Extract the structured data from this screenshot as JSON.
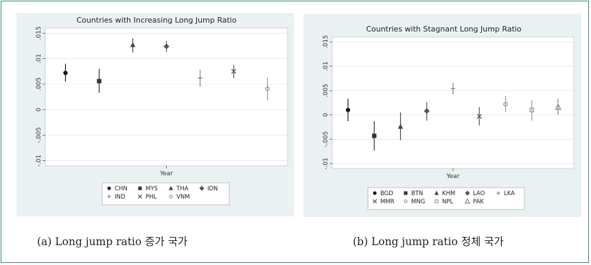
{
  "captions": {
    "a": "(a) Long jump ratio 증가 국가",
    "b": "(b) Long jump ratio 정체 국가"
  },
  "chart_data": [
    {
      "type": "scatter",
      "subtype": "point-with-confidence-interval",
      "title": "Countries with Increasing Long Jump Ratio",
      "xlabel": "Year",
      "ylabel": "",
      "ylim": [
        -0.011,
        0.016
      ],
      "yticks": [
        ".015",
        ".01",
        ".005",
        "0",
        "-.005",
        "-.01"
      ],
      "ytick_values": [
        0.015,
        0.01,
        0.005,
        0,
        -0.005,
        -0.01
      ],
      "grid": true,
      "legend_position": "bottom",
      "legend_rows": [
        [
          "CHN",
          "MYS",
          "THA",
          "IDN"
        ],
        [
          "IND",
          "PHL",
          "VNM"
        ]
      ],
      "series": [
        {
          "name": "CHN",
          "marker": "circle",
          "color": "#1a1a1a",
          "value": 0.0072,
          "ci": [
            0.0055,
            0.009
          ]
        },
        {
          "name": "MYS",
          "marker": "square",
          "color": "#333333",
          "value": 0.0056,
          "ci": [
            0.0033,
            0.008
          ]
        },
        {
          "name": "THA",
          "marker": "triangle",
          "color": "#444444",
          "value": 0.0127,
          "ci": [
            0.0112,
            0.014
          ]
        },
        {
          "name": "IDN",
          "marker": "diamond",
          "color": "#555555",
          "value": 0.0124,
          "ci": [
            0.0113,
            0.0135
          ]
        },
        {
          "name": "IND",
          "marker": "plus",
          "color": "#888888",
          "value": 0.0062,
          "ci": [
            0.0045,
            0.0078
          ]
        },
        {
          "name": "PHL",
          "marker": "cross",
          "color": "#555555",
          "value": 0.0075,
          "ci": [
            0.0062,
            0.0088
          ]
        },
        {
          "name": "VNM",
          "marker": "circle-open",
          "color": "#999999",
          "value": 0.0041,
          "ci": [
            0.0018,
            0.0063
          ]
        }
      ]
    },
    {
      "type": "scatter",
      "subtype": "point-with-confidence-interval",
      "title": "Countries with Stagnant Long Jump Ratio",
      "xlabel": "Year",
      "ylabel": "",
      "ylim": [
        -0.011,
        0.016
      ],
      "yticks": [
        ".015",
        ".01",
        ".005",
        "0",
        "-.005",
        "-.01"
      ],
      "ytick_values": [
        0.015,
        0.01,
        0.005,
        0,
        -0.005,
        -0.01
      ],
      "grid": true,
      "legend_position": "bottom",
      "legend_rows": [
        [
          "BGD",
          "BTN",
          "KHM",
          "LAO",
          "LKA"
        ],
        [
          "MMR",
          "MNG",
          "NPL",
          "PAK"
        ]
      ],
      "series": [
        {
          "name": "BGD",
          "marker": "circle",
          "color": "#1a1a1a",
          "value": 0.001,
          "ci": [
            -0.0013,
            0.0033
          ]
        },
        {
          "name": "BTN",
          "marker": "square",
          "color": "#333333",
          "value": -0.0043,
          "ci": [
            -0.0073,
            -0.0013
          ]
        },
        {
          "name": "KHM",
          "marker": "triangle",
          "color": "#444444",
          "value": -0.0024,
          "ci": [
            -0.0052,
            0.0005
          ]
        },
        {
          "name": "LAO",
          "marker": "diamond",
          "color": "#555555",
          "value": 0.0008,
          "ci": [
            -0.0012,
            0.0026
          ]
        },
        {
          "name": "LKA",
          "marker": "plus",
          "color": "#888888",
          "value": 0.0054,
          "ci": [
            0.0042,
            0.0066
          ]
        },
        {
          "name": "MMR",
          "marker": "cross",
          "color": "#555555",
          "value": -0.0003,
          "ci": [
            -0.0022,
            0.0016
          ]
        },
        {
          "name": "MNG",
          "marker": "circle-open",
          "color": "#999999",
          "value": 0.0022,
          "ci": [
            0.0006,
            0.0039
          ]
        },
        {
          "name": "NPL",
          "marker": "square-open",
          "color": "#999999",
          "value": 0.001,
          "ci": [
            -0.0012,
            0.003
          ]
        },
        {
          "name": "PAK",
          "marker": "triangle-open",
          "color": "#888888",
          "value": 0.0016,
          "ci": [
            0,
            0.0034
          ]
        }
      ]
    }
  ]
}
